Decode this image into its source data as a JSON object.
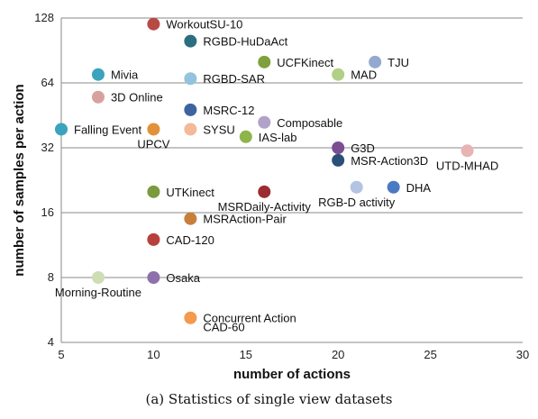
{
  "chart_data": {
    "type": "scatter",
    "xlabel": "number of actions",
    "ylabel": "number of samples per action",
    "xlim": [
      5,
      30
    ],
    "ylim": [
      4,
      128
    ],
    "y_scale": "log2",
    "x_ticks": [
      5,
      10,
      15,
      20,
      25,
      30
    ],
    "y_ticks": [
      4,
      8,
      16,
      32,
      64,
      128
    ],
    "grid": "horizontal",
    "points": [
      {
        "label": "WorkoutSU-10",
        "x": 10,
        "y": 120,
        "color": "#b84a45",
        "label_pos": "right"
      },
      {
        "label": "RGBD-HuDaAct",
        "x": 12,
        "y": 100,
        "color": "#2c6e7f",
        "label_pos": "right"
      },
      {
        "label": "UCFKinect",
        "x": 16,
        "y": 80,
        "color": "#7fa03c",
        "label_pos": "right"
      },
      {
        "label": "TJU",
        "x": 22,
        "y": 80,
        "color": "#93a9d0",
        "label_pos": "right"
      },
      {
        "label": "Mivia",
        "x": 7,
        "y": 70,
        "color": "#3aa3bd",
        "label_pos": "right"
      },
      {
        "label": "RGBD-SAR",
        "x": 12,
        "y": 67,
        "color": "#93c3de",
        "label_pos": "right"
      },
      {
        "label": "MAD",
        "x": 20,
        "y": 70,
        "color": "#b2cf87",
        "label_pos": "right"
      },
      {
        "label": "3D Online",
        "x": 7,
        "y": 55,
        "color": "#d9a19d",
        "label_pos": "right"
      },
      {
        "label": "MSRC-12",
        "x": 12,
        "y": 48,
        "color": "#3d64a1",
        "label_pos": "right"
      },
      {
        "label": "Composable",
        "x": 16,
        "y": 42,
        "color": "#b0a2c8",
        "label_pos": "right"
      },
      {
        "label": "Falling Event",
        "x": 5,
        "y": 39,
        "color": "#3aa3bd",
        "label_pos": "right"
      },
      {
        "label": "UPCV",
        "x": 10,
        "y": 39,
        "color": "#e39139",
        "label_pos": "below"
      },
      {
        "label": "SYSU",
        "x": 12,
        "y": 39,
        "color": "#f4b998",
        "label_pos": "right"
      },
      {
        "label": "IAS-lab",
        "x": 15,
        "y": 36,
        "color": "#8db54a",
        "label_pos": "right"
      },
      {
        "label": "G3D",
        "x": 20,
        "y": 32,
        "color": "#7b4d92",
        "label_pos": "right"
      },
      {
        "label": "MSR-Action3D",
        "x": 20,
        "y": 28,
        "color": "#2c4f7a",
        "label_pos": "right"
      },
      {
        "label": "UTD-MHAD",
        "x": 27,
        "y": 31,
        "color": "#e8b3b3",
        "label_pos": "below"
      },
      {
        "label": "UTKinect",
        "x": 10,
        "y": 20,
        "color": "#7a9a3e",
        "label_pos": "right"
      },
      {
        "label": "MSRDaily-Activity",
        "x": 16,
        "y": 20,
        "color": "#9b2d31",
        "label_pos": "below"
      },
      {
        "label": "RGB-D activity",
        "x": 21,
        "y": 21,
        "color": "#b4c3e3",
        "label_pos": "below"
      },
      {
        "label": "DHA",
        "x": 23,
        "y": 21,
        "color": "#4b79c4",
        "label_pos": "right"
      },
      {
        "label": "MSRAction-Pair",
        "x": 12,
        "y": 15,
        "color": "#c77f3a",
        "label_pos": "right"
      },
      {
        "label": "CAD-120",
        "x": 10,
        "y": 12,
        "color": "#b8403c",
        "label_pos": "right"
      },
      {
        "label": "Morning-Routine",
        "x": 7,
        "y": 8,
        "color": "#cfddb4",
        "label_pos": "below"
      },
      {
        "label": "Osaka",
        "x": 10,
        "y": 8,
        "color": "#8e70ad",
        "label_pos": "right"
      },
      {
        "label": "Concurrent Action",
        "x": 12,
        "y": 5.2,
        "color": "#f39a4c",
        "label_pos": "right"
      },
      {
        "label": "CAD-60",
        "x": 12,
        "y": 5.2,
        "color": "#f39a4c",
        "label_pos": "below-right"
      }
    ]
  },
  "caption": "(a) Statistics of single view datasets"
}
